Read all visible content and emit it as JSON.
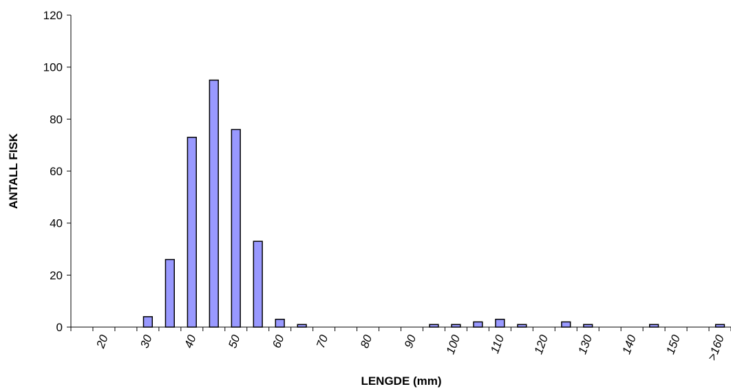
{
  "chart_data": {
    "type": "bar",
    "x_label": "LENGDE (mm)",
    "y_label": "ANTALL FISK",
    "categories": [
      null,
      "20",
      null,
      "30",
      null,
      "40",
      null,
      "50",
      null,
      "60",
      null,
      "70",
      null,
      "80",
      null,
      "90",
      null,
      "100",
      null,
      "110",
      null,
      "120",
      null,
      "130",
      null,
      "140",
      null,
      "150",
      null,
      ">160"
    ],
    "values": [
      0,
      0,
      0,
      4,
      26,
      73,
      95,
      76,
      33,
      3,
      1,
      0,
      0,
      0,
      0,
      0,
      1,
      1,
      2,
      3,
      1,
      0,
      2,
      1,
      0,
      0,
      1,
      0,
      0,
      1
    ],
    "color": "#9999ff",
    "ylim": [
      0,
      120
    ],
    "yticks": [
      0,
      20,
      40,
      60,
      80,
      100,
      120
    ],
    "grid": false
  }
}
